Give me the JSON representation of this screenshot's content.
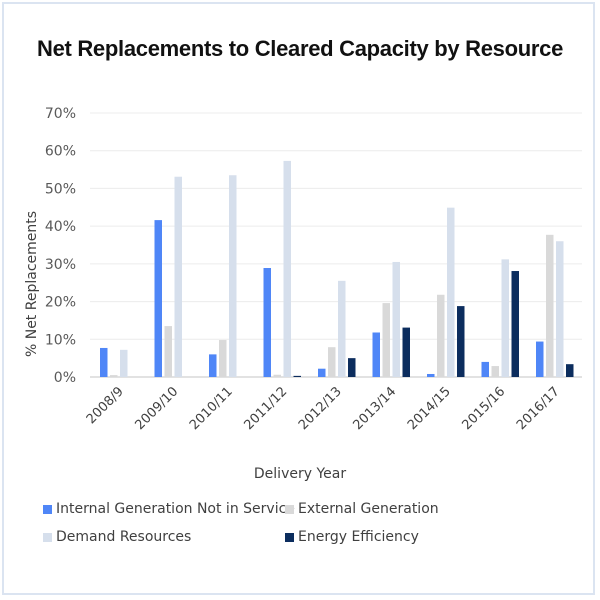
{
  "chart_data": {
    "type": "bar",
    "title": "Net Replacements to Cleared Capacity by Resource",
    "xlabel": "Delivery Year",
    "ylabel": "% Net Replacements",
    "ylim": [
      0,
      70
    ],
    "yticks": [
      "0%",
      "10%",
      "20%",
      "30%",
      "40%",
      "50%",
      "60%",
      "70%"
    ],
    "ytick_values": [
      0,
      10,
      20,
      30,
      40,
      50,
      60,
      70
    ],
    "grid": true,
    "legend_position": "bottom",
    "categories": [
      "2008/9",
      "2009/10",
      "2010/11",
      "2011/12",
      "2012/13",
      "2013/14",
      "2014/15",
      "2015/16",
      "2016/17"
    ],
    "series": [
      {
        "name": "Internal Generation Not in Service",
        "color": "#4f86f7",
        "values": [
          7.7,
          41.6,
          6.0,
          28.9,
          2.2,
          11.8,
          0.8,
          4.0,
          9.4
        ]
      },
      {
        "name": "External Generation",
        "color": "#d9d9d9",
        "values": [
          0.5,
          13.5,
          9.8,
          0.6,
          7.9,
          19.6,
          21.8,
          2.9,
          37.7
        ]
      },
      {
        "name": "Demand Resources",
        "color": "#d6dfec",
        "values": [
          7.2,
          53.1,
          53.5,
          57.3,
          25.5,
          30.5,
          44.9,
          31.2,
          36.0
        ]
      },
      {
        "name": "Energy Efficiency",
        "color": "#0c2d5e",
        "values": [
          0,
          0,
          0,
          0.3,
          5.0,
          13.1,
          18.8,
          28.1,
          3.4
        ]
      }
    ]
  }
}
